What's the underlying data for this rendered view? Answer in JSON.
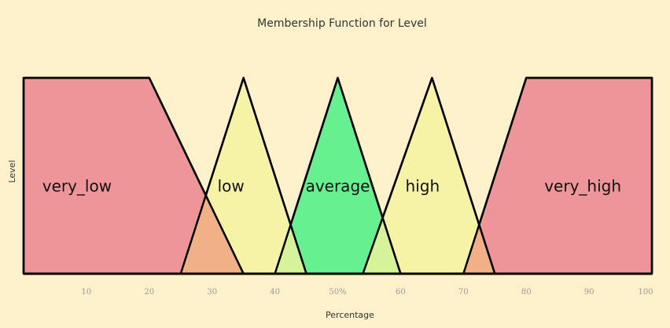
{
  "chart_data": {
    "type": "area",
    "title": "Membership Function for Level",
    "xlabel": "Percentage",
    "ylabel": "Level",
    "xlim": [
      0,
      100
    ],
    "ylim": [
      0,
      1
    ],
    "grid": false,
    "x_ticks": [
      {
        "value": 10,
        "label": "10"
      },
      {
        "value": 20,
        "label": "20"
      },
      {
        "value": 30,
        "label": "30"
      },
      {
        "value": 40,
        "label": "40"
      },
      {
        "value": 50,
        "label": "50%"
      },
      {
        "value": 60,
        "label": "60"
      },
      {
        "value": 70,
        "label": "70"
      },
      {
        "value": 80,
        "label": "80"
      },
      {
        "value": 90,
        "label": "90"
      },
      {
        "value": 100,
        "label": "100"
      }
    ],
    "series": [
      {
        "name": "very_low",
        "points": [
          [
            0,
            0
          ],
          [
            0,
            1
          ],
          [
            20,
            1
          ],
          [
            35,
            0
          ]
        ],
        "label_x": 8.5,
        "color": "#ee9599"
      },
      {
        "name": "low",
        "points": [
          [
            25,
            0
          ],
          [
            35,
            1
          ],
          [
            45,
            0
          ]
        ],
        "label_x": 33,
        "color": "#f6f3a6"
      },
      {
        "name": "average",
        "points": [
          [
            40,
            0
          ],
          [
            50,
            1
          ],
          [
            60,
            0
          ]
        ],
        "label_x": 50,
        "color": "#67f08f"
      },
      {
        "name": "high",
        "points": [
          [
            54,
            0
          ],
          [
            65,
            1
          ],
          [
            75,
            0
          ]
        ],
        "label_x": 63.5,
        "color": "#f6f3a6"
      },
      {
        "name": "very_high",
        "points": [
          [
            70,
            0
          ],
          [
            80,
            1
          ],
          [
            100,
            1
          ],
          [
            100,
            0
          ]
        ],
        "label_x": 89,
        "color": "#ee9599"
      }
    ],
    "overlap_colors": {
      "very_low&low": "#f2b086",
      "low&average": "#d6f39a",
      "average&high": "#d6f39a",
      "high&very_high": "#f2b086"
    }
  }
}
